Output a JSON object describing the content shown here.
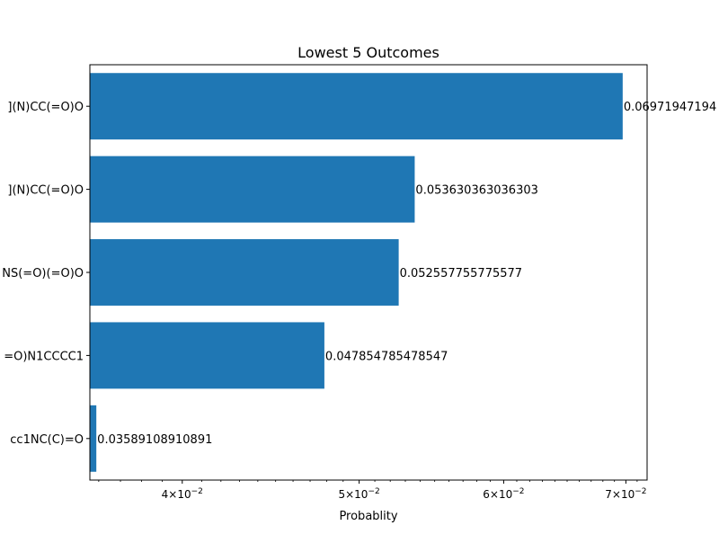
{
  "chart_data": {
    "type": "bar",
    "orientation": "horizontal",
    "title": "Lowest 5 Outcomes",
    "xlabel": "Probablity",
    "ylabel": "",
    "x_scale": "log",
    "xlim": [
      0.0356,
      0.0719
    ],
    "xticks": [
      {
        "value": 0.04,
        "mantissa": "4",
        "exponent": "−2"
      },
      {
        "value": 0.05,
        "mantissa": "5",
        "exponent": "−2"
      },
      {
        "value": 0.06,
        "mantissa": "6",
        "exponent": "−2"
      },
      {
        "value": 0.07,
        "mantissa": "7",
        "exponent": "−2"
      }
    ],
    "categories": [
      "](N)CC(=O)O",
      "](N)CC(=O)O",
      "NS(=O)(=O)O",
      "=O)N1CCCC1",
      "cc1NC(C)=O"
    ],
    "values": [
      0.06971947194,
      0.053630363036303,
      0.052557755775577,
      0.047854785478547,
      0.03589108910891
    ],
    "value_labels": [
      "0.06971947194",
      "0.053630363036303",
      "0.052557755775577",
      "0.047854785478547",
      "0.03589108910891"
    ],
    "bar_color": "#1f77b4",
    "grid": false,
    "legend": "none"
  }
}
